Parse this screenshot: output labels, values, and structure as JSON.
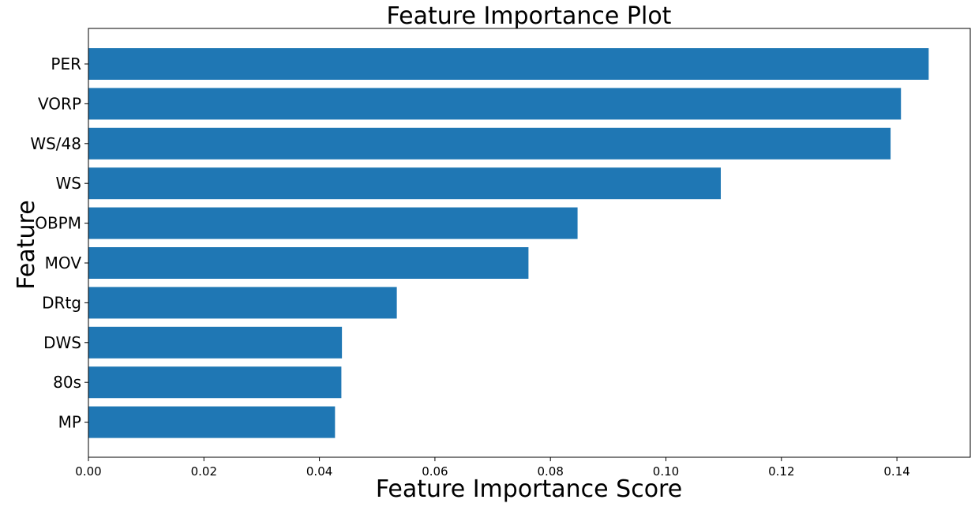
{
  "chart_data": {
    "type": "bar",
    "orientation": "horizontal",
    "title": "Feature Importance Plot",
    "xlabel": "Feature Importance Score",
    "ylabel": "Feature",
    "categories": [
      "PER",
      "VORP",
      "WS/48",
      "WS",
      "OBPM",
      "MOV",
      "DRtg",
      "DWS",
      "80s",
      "MP"
    ],
    "values": [
      0.1455,
      0.1407,
      0.1389,
      0.1095,
      0.0847,
      0.0762,
      0.0534,
      0.0439,
      0.0438,
      0.0427
    ],
    "xlim": [
      0,
      0.1527
    ],
    "xticks": [
      0.0,
      0.02,
      0.04,
      0.06,
      0.08,
      0.1,
      0.12,
      0.14
    ],
    "xtick_labels": [
      "0.00",
      "0.02",
      "0.04",
      "0.06",
      "0.08",
      "0.10",
      "0.12",
      "0.14"
    ],
    "grid": false,
    "legend": "none",
    "colors": {
      "bar": "#1f77b4",
      "axes": "#000000",
      "background": "#ffffff"
    }
  }
}
